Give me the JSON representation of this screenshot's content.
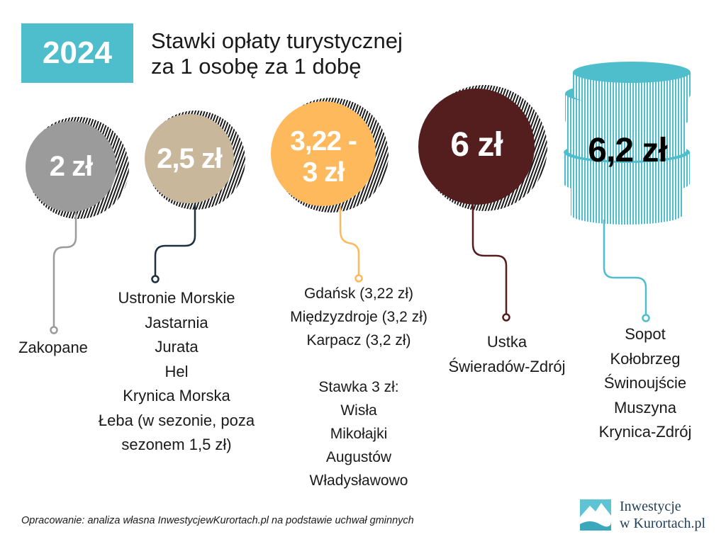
{
  "header": {
    "year": "2024",
    "title_line1": "Stawki opłaty turystycznej",
    "title_line2": "za 1 osobę za 1 dobę"
  },
  "tiers": [
    {
      "amount": "2 zł",
      "color": "#9b9b9b",
      "cities": [
        "Zakopane"
      ]
    },
    {
      "amount": "2,5 zł",
      "color": "#c8b79b",
      "cities": [
        "Ustronie Morskie",
        "Jastarnia",
        "Jurata",
        "Hel",
        "Krynica Morska",
        "Łeba (w sezonie, poza",
        "sezonem 1,5 zł)"
      ]
    },
    {
      "amount_line1": "3,22 -",
      "amount_line2": "3 zł",
      "color": "#fdb95c",
      "cities": [
        "Gdańsk (3,22 zł)",
        "Międzyzdroje (3,2 zł)",
        "Karpacz (3,2 zł)",
        "",
        "Stawka 3 zł:",
        "Wisła",
        "Mikołajki",
        "Augustów",
        "Władysławowo"
      ]
    },
    {
      "amount": "6 zł",
      "color": "#541e1f",
      "cities": [
        "Ustka",
        "Świeradów-Zdrój"
      ]
    },
    {
      "amount": "6,2 zł",
      "color": "#4fbecc",
      "cities": [
        "Sopot",
        "Kołobrzeg",
        "Świnoujście",
        "Muszyna",
        "Krynica-Zdrój"
      ]
    }
  ],
  "footer": {
    "source": "Opracowanie: analiza własna InwestycjewKurortach.pl na podstawie uchwał gminnych"
  },
  "brand": {
    "line1": "Inwestycje",
    "line2": "w Kurortach.pl",
    "color": "#1e3d58"
  }
}
